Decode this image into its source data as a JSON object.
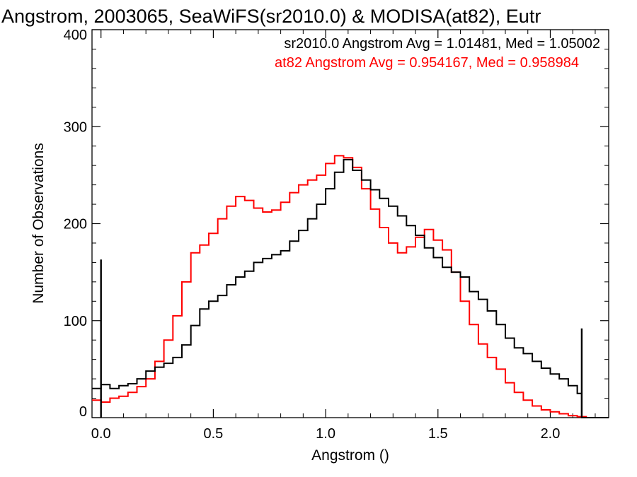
{
  "chart_data": {
    "type": "line",
    "title": "Angstrom, 2003065, SeaWiFS(sr2010.0) & MODISA(at82), Eutr",
    "xlabel": "Angstrom ()",
    "ylabel": "Number of Observations",
    "xlim": [
      -0.04,
      2.26
    ],
    "ylim": [
      0,
      400
    ],
    "x_ticks": [
      0.0,
      0.5,
      1.0,
      1.5,
      2.0
    ],
    "x_tick_labels": [
      "0.0",
      "0.5",
      "1.0",
      "1.5",
      "2.0"
    ],
    "y_ticks": [
      0,
      100,
      200,
      300,
      400
    ],
    "y_tick_labels": [
      "0",
      "100",
      "200",
      "300",
      "400"
    ],
    "grid": false,
    "annotations": [
      {
        "text": "sr2010.0 Angstrom Avg = 1.01481, Med = 1.05002",
        "color": "#000000"
      },
      {
        "text": "at82 Angstrom Avg = 0.954167, Med = 0.958984",
        "color": "#ff0000"
      }
    ],
    "series": [
      {
        "color": "#000000",
        "x": [
          -0.04,
          0.0,
          0.04,
          0.08,
          0.12,
          0.16,
          0.2,
          0.24,
          0.28,
          0.32,
          0.36,
          0.4,
          0.44,
          0.48,
          0.52,
          0.56,
          0.6,
          0.64,
          0.68,
          0.72,
          0.76,
          0.8,
          0.84,
          0.88,
          0.92,
          0.96,
          1.0,
          1.04,
          1.08,
          1.12,
          1.16,
          1.2,
          1.24,
          1.28,
          1.32,
          1.36,
          1.4,
          1.44,
          1.48,
          1.52,
          1.56,
          1.6,
          1.64,
          1.68,
          1.72,
          1.76,
          1.8,
          1.84,
          1.88,
          1.92,
          1.96,
          2.0,
          2.04,
          2.08,
          2.12,
          2.14,
          2.16,
          2.26
        ],
        "y": [
          30,
          34,
          30,
          33,
          35,
          40,
          48,
          52,
          56,
          62,
          75,
          95,
          112,
          120,
          126,
          137,
          145,
          151,
          160,
          164,
          168,
          172,
          182,
          193,
          205,
          220,
          236,
          253,
          266,
          255,
          245,
          235,
          226,
          218,
          208,
          198,
          188,
          175,
          165,
          155,
          150,
          145,
          130,
          122,
          110,
          96,
          82,
          72,
          66,
          58,
          51,
          45,
          40,
          33,
          25,
          0,
          0,
          0
        ]
      },
      {
        "color": "#ff0000",
        "x": [
          -0.04,
          0.0,
          0.04,
          0.08,
          0.12,
          0.16,
          0.2,
          0.24,
          0.28,
          0.32,
          0.36,
          0.4,
          0.44,
          0.48,
          0.52,
          0.56,
          0.6,
          0.64,
          0.68,
          0.72,
          0.76,
          0.8,
          0.84,
          0.88,
          0.92,
          0.96,
          1.0,
          1.04,
          1.08,
          1.12,
          1.16,
          1.2,
          1.24,
          1.28,
          1.32,
          1.36,
          1.4,
          1.44,
          1.48,
          1.52,
          1.56,
          1.6,
          1.64,
          1.68,
          1.72,
          1.76,
          1.8,
          1.84,
          1.88,
          1.92,
          1.96,
          2.0,
          2.04,
          2.08,
          2.12,
          2.16,
          2.26
        ],
        "y": [
          18,
          16,
          20,
          22,
          26,
          32,
          40,
          58,
          80,
          105,
          140,
          170,
          178,
          190,
          205,
          218,
          228,
          224,
          216,
          212,
          214,
          222,
          232,
          240,
          245,
          250,
          262,
          270,
          268,
          258,
          236,
          215,
          196,
          180,
          170,
          176,
          186,
          194,
          183,
          173,
          150,
          120,
          96,
          76,
          62,
          50,
          36,
          26,
          18,
          12,
          8,
          6,
          4,
          2,
          1,
          0,
          0
        ]
      }
    ],
    "spikes": [
      {
        "color": "#000000",
        "x": 0.0,
        "y": 163
      },
      {
        "color": "#000000",
        "x": 2.14,
        "y": 92
      }
    ]
  }
}
